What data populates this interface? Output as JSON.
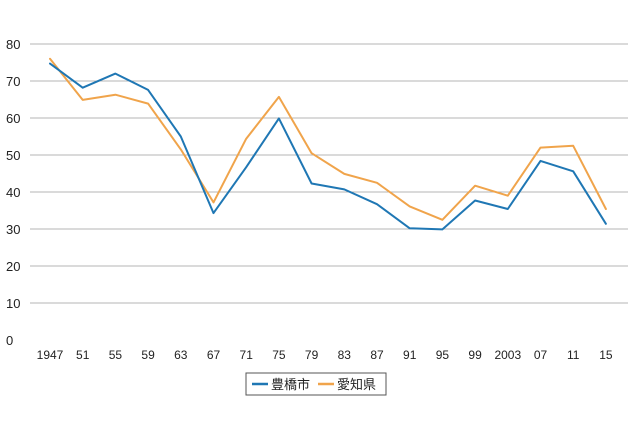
{
  "chart_data": {
    "type": "line",
    "categories": [
      "1947",
      "51",
      "55",
      "59",
      "63",
      "67",
      "71",
      "75",
      "79",
      "83",
      "87",
      "91",
      "95",
      "99",
      "2003",
      "07",
      "11",
      "15"
    ],
    "ylim": [
      0,
      80
    ],
    "yticks": [
      0,
      10,
      20,
      30,
      40,
      50,
      60,
      70,
      80
    ],
    "grid": true,
    "legend_position": "bottom-center",
    "series": [
      {
        "name": "豊橋市",
        "color": "#1f77b4",
        "values": [
          74.7,
          68.2,
          72.0,
          67.6,
          55.0,
          34.3,
          46.7,
          59.9,
          42.3,
          40.7,
          36.7,
          30.2,
          29.9,
          37.7,
          35.4,
          48.4,
          45.6,
          31.4
        ]
      },
      {
        "name": "愛知県",
        "color": "#f0a44b",
        "values": [
          76.0,
          64.9,
          66.3,
          63.9,
          51.5,
          37.2,
          54.4,
          65.7,
          50.5,
          44.9,
          42.5,
          36.1,
          32.5,
          41.7,
          39.0,
          52.0,
          52.5,
          35.4
        ]
      }
    ]
  }
}
